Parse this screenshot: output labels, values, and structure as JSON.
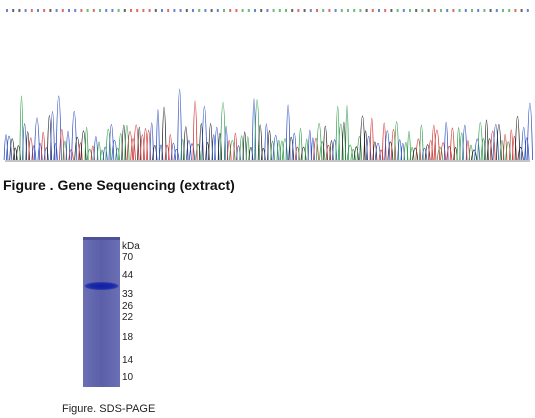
{
  "sequencing": {
    "caption": "Figure . Gene Sequencing (extract)",
    "trace_colors": {
      "A": "#2f9e4a",
      "C": "#2f4fbf",
      "G": "#222222",
      "T": "#d03030"
    }
  },
  "gel": {
    "unit": "kDa",
    "markers": [
      "70",
      "44",
      "33",
      "26",
      "22",
      "18",
      "14",
      "10"
    ],
    "caption": "Figure. SDS-PAGE",
    "lane_color": "#5a5fa8",
    "band_color": "#1a2aa8"
  }
}
